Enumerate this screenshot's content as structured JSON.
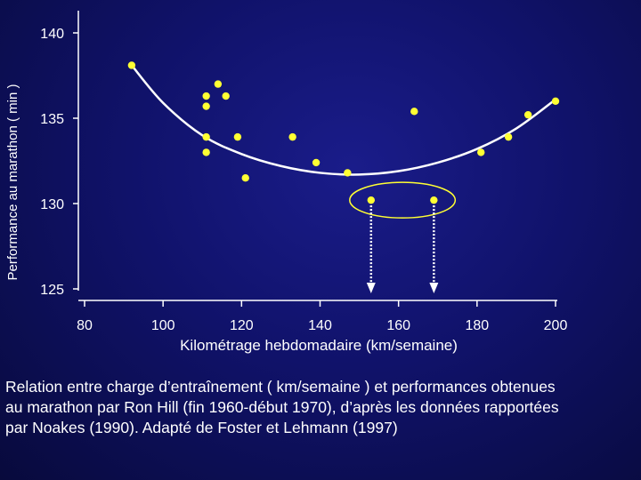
{
  "chart_data": {
    "type": "scatter",
    "xlabel": "Kilométrage hebdomadaire (km/semaine)",
    "ylabel": "Performance au marathon ( min )",
    "xlim": [
      80,
      200
    ],
    "ylim": [
      125,
      140
    ],
    "x_ticks": [
      "80",
      "100",
      "120",
      "140",
      "160",
      "180",
      "200"
    ],
    "y_ticks": [
      "125",
      "130",
      "135",
      "140"
    ],
    "points": [
      {
        "x": 92,
        "y": 138.1
      },
      {
        "x": 111,
        "y": 136.3
      },
      {
        "x": 111,
        "y": 135.7
      },
      {
        "x": 114,
        "y": 137.0
      },
      {
        "x": 116,
        "y": 136.3
      },
      {
        "x": 111,
        "y": 133.9
      },
      {
        "x": 111,
        "y": 133.0
      },
      {
        "x": 119,
        "y": 133.9
      },
      {
        "x": 121,
        "y": 131.5
      },
      {
        "x": 133,
        "y": 133.9
      },
      {
        "x": 139,
        "y": 132.4
      },
      {
        "x": 147,
        "y": 131.8
      },
      {
        "x": 153,
        "y": 130.2
      },
      {
        "x": 164,
        "y": 135.4
      },
      {
        "x": 169,
        "y": 130.2
      },
      {
        "x": 181,
        "y": 133.0
      },
      {
        "x": 188,
        "y": 133.9
      },
      {
        "x": 193,
        "y": 135.2
      },
      {
        "x": 200,
        "y": 136.0
      }
    ],
    "trend": {
      "x": [
        92,
        100,
        110,
        120,
        130,
        140,
        150,
        160,
        170,
        180,
        190,
        200
      ],
      "y": [
        138.1,
        135.9,
        134.0,
        132.9,
        132.2,
        131.8,
        131.7,
        131.9,
        132.4,
        133.2,
        134.4,
        136.1
      ]
    },
    "highlighted_points_x": [
      153,
      169
    ],
    "point_color": "#ffff33",
    "line_color": "#ffffff",
    "background_color": "#10126a"
  },
  "caption": {
    "line1": "Relation entre charge d’entraînement ( km/semaine ) et performances obtenues",
    "line2": "au marathon par Ron Hill (fin 1960-début 1970), d’après les données rapportées",
    "line3": "par Noakes (1990). Adapté de Foster et Lehmann (1997)"
  }
}
